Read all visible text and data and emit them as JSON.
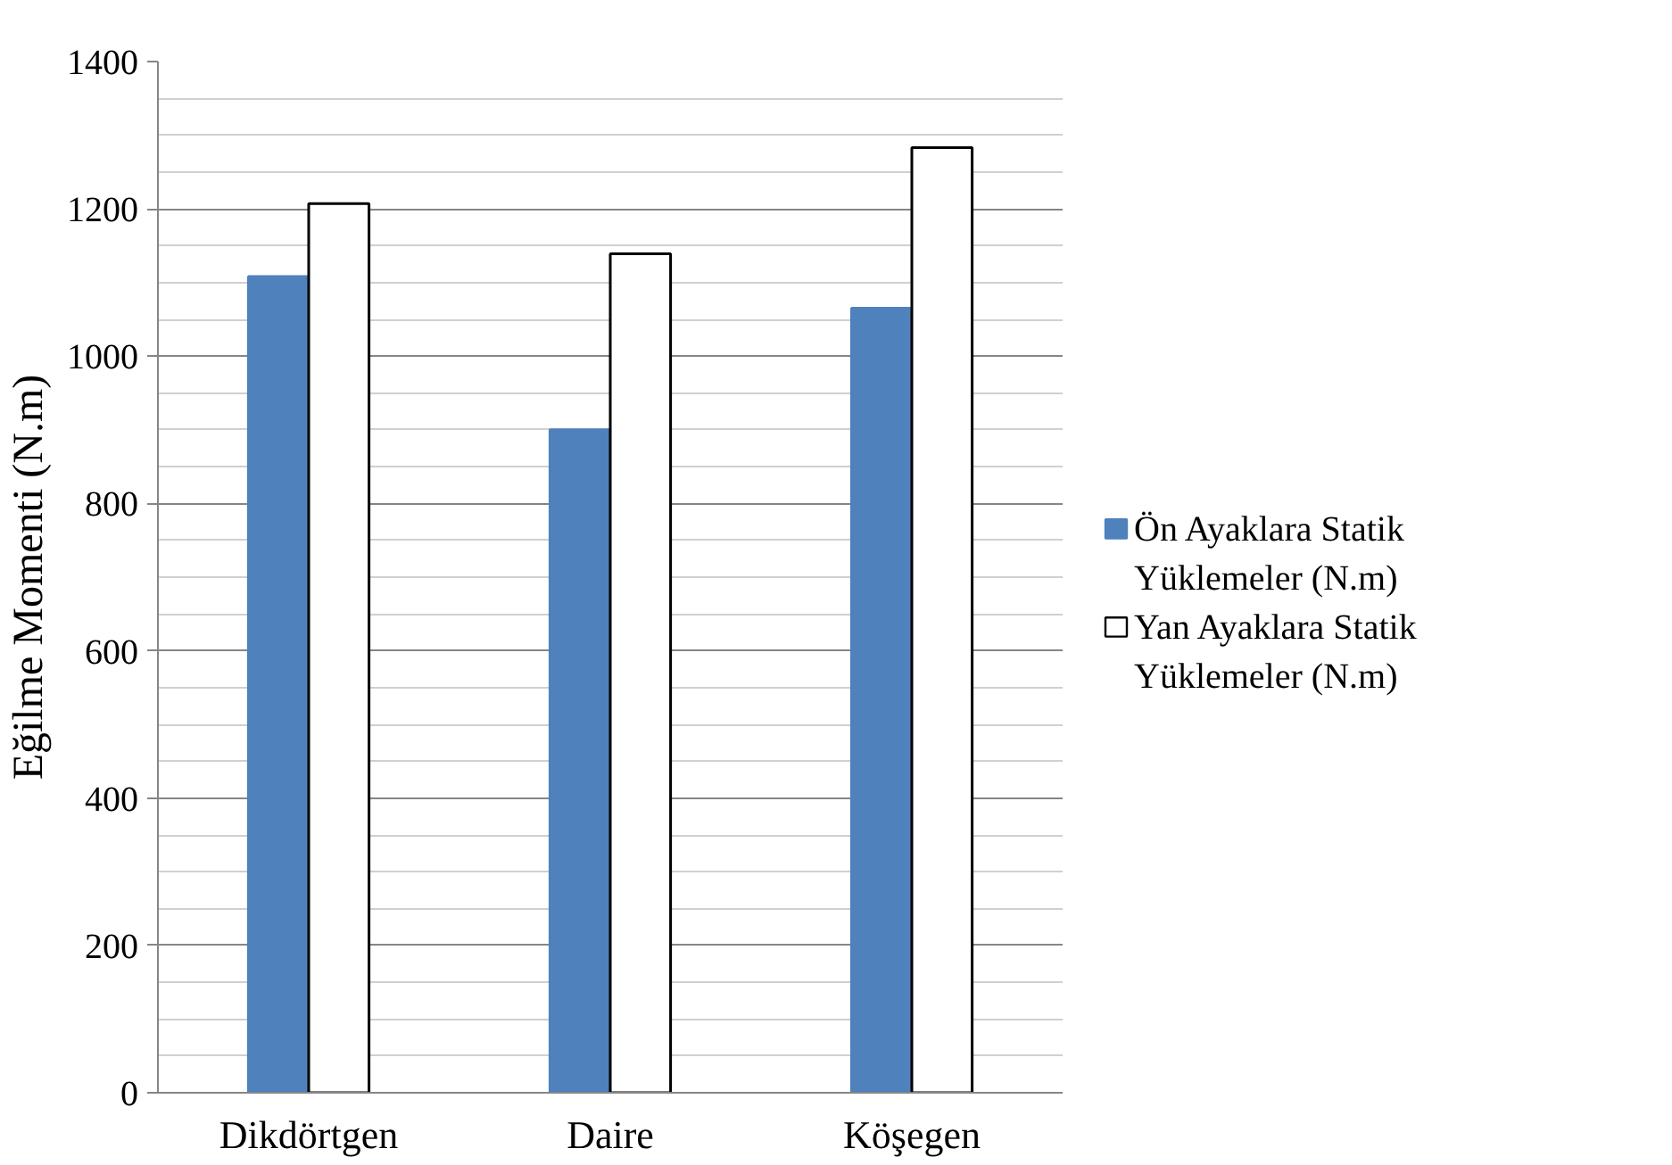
{
  "chart_data": {
    "type": "bar",
    "ylabel": "Eğilme Momenti (N.m)",
    "categories": [
      "Dikdörtgen",
      "Daire",
      "Köşegen"
    ],
    "series": [
      {
        "name": "Ön Ayaklara Statik Yüklemeler (N.m)",
        "color": "#4f81bd",
        "values": [
          1108,
          900,
          1065
        ]
      },
      {
        "name": "Yan Ayaklara Statik Yüklemeler (N.m)",
        "color": "#ffffff",
        "values": [
          1207,
          1139,
          1283
        ]
      }
    ],
    "ylim": [
      0,
      1400
    ],
    "yticks": [
      0,
      200,
      400,
      600,
      800,
      1000,
      1200,
      1400
    ],
    "grid": "y",
    "legend": "right"
  }
}
